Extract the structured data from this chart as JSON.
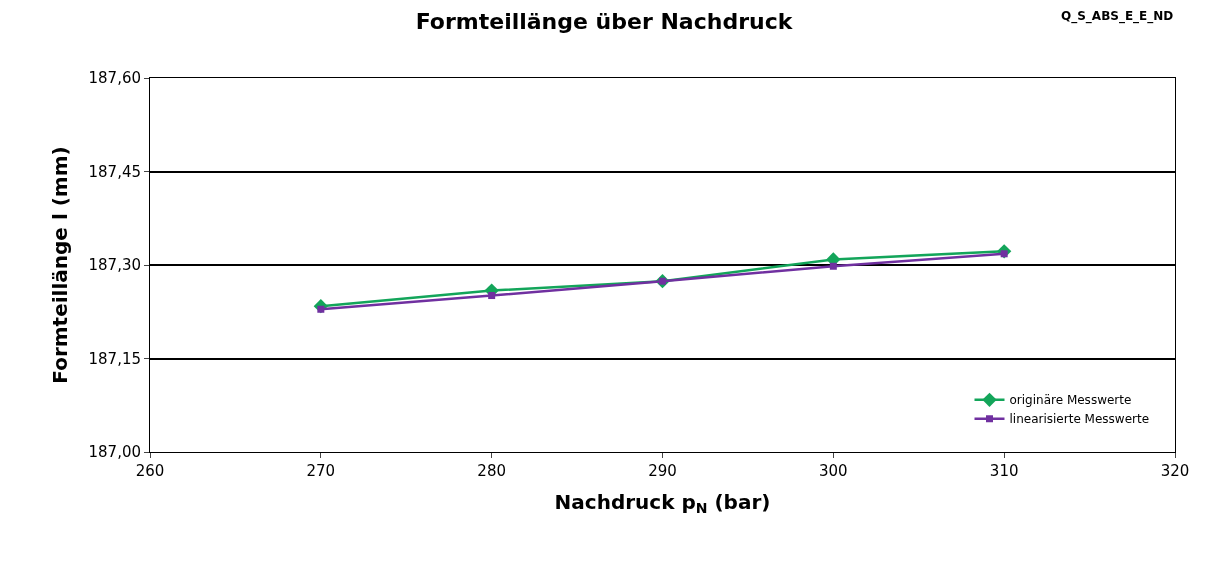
{
  "chart_data": {
    "type": "line",
    "title": "Formteillänge über Nachdruck",
    "xlabel": "Nachdruck p$_{N}$ (bar)",
    "ylabel": "Formteillänge l (mm)",
    "annotations": [
      "Q_S_ABS_E_E_ND"
    ],
    "x": [
      270,
      280,
      290,
      300,
      310
    ],
    "series": [
      {
        "name": "originäre Messwerte",
        "color": "#13a55a",
        "marker": "diamond",
        "values": [
          187.234,
          187.259,
          187.274,
          187.309,
          187.322
        ]
      },
      {
        "name": "linearisierte Messwerte",
        "color": "#7030a0",
        "marker": "square",
        "values": [
          187.229,
          187.251,
          187.274,
          187.298,
          187.318
        ]
      }
    ],
    "xlim": [
      260,
      320
    ],
    "xticks": [
      260,
      270,
      280,
      290,
      300,
      310,
      320
    ],
    "ylim": [
      187.0,
      187.6
    ],
    "yticks": [
      {
        "value": 187.0,
        "label": "187,00"
      },
      {
        "value": 187.15,
        "label": "187,15"
      },
      {
        "value": 187.3,
        "label": "187,30"
      },
      {
        "value": 187.45,
        "label": "187,45"
      },
      {
        "value": 187.6,
        "label": "187,60"
      }
    ],
    "grid": "y",
    "legend": "bottom right",
    "line_style": "solid"
  }
}
